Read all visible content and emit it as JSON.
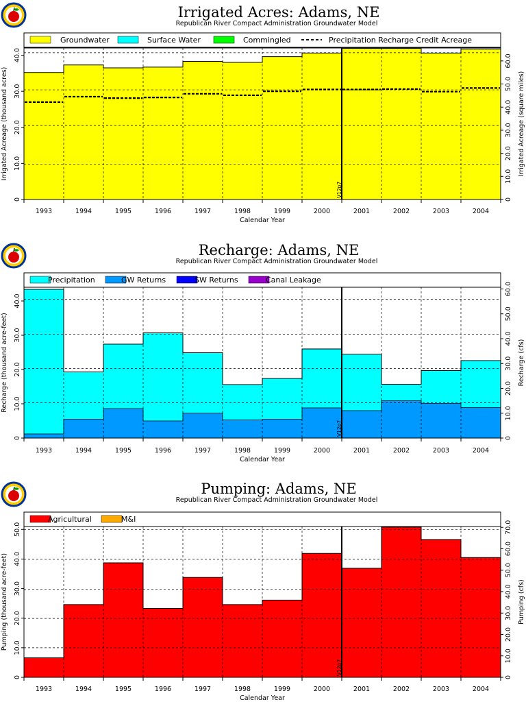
{
  "logo": {
    "icon": "apple-logo-icon"
  },
  "chart_data": [
    {
      "type": "area",
      "title": "Irrigated Acres: Adams, NE",
      "subtitle": "Republican River Compact Administration Groundwater Model",
      "xlabel": "Calendar Year",
      "ylabel": "Irrigated Acreage (thousand acres)",
      "ylabel_right": "Irrigated Acreage (square miles)",
      "categories": [
        "1993",
        "1994",
        "1995",
        "1996",
        "1997",
        "1998",
        "1999",
        "2000",
        "2001",
        "2002",
        "2003",
        "2004"
      ],
      "ylim": [
        0,
        42
      ],
      "yticks": [
        "0",
        "10.0",
        "20.0",
        "30.0",
        "40.0"
      ],
      "yticks_values": [
        0,
        10,
        20,
        30,
        40
      ],
      "ylim_right": [
        0,
        65.6
      ],
      "yticks_right": [
        "0",
        "10.0",
        "20.0",
        "30.0",
        "40.0",
        "50.0",
        "60.0"
      ],
      "yticks_right_values": [
        0,
        10,
        20,
        30,
        40,
        50,
        60
      ],
      "hgrid": [
        9.8,
        20.5,
        30.4,
        40.7
      ],
      "legend": [
        "Groundwater",
        "Surface Water",
        "Commingled",
        "Precipitation Recharge Credit Acreage"
      ],
      "legend_colors": [
        "#ffff00",
        "#00ffff",
        "#00ff00",
        "#000000"
      ],
      "series": [
        {
          "name": "Groundwater",
          "color": "#ffff00",
          "values": [
            35.2,
            37.3,
            36.5,
            36.7,
            38.3,
            38.0,
            39.6,
            40.6,
            41.8,
            41.8,
            40.5,
            41.6
          ]
        },
        {
          "name": "Surface Water",
          "color": "#00ffff",
          "values": [
            0.0,
            0.0,
            0.0,
            0.0,
            0.0,
            0.0,
            0.0,
            0.0,
            0.1,
            0.1,
            0.1,
            0.1
          ]
        },
        {
          "name": "Commingled",
          "color": "#00ff00",
          "values": [
            0,
            0,
            0,
            0,
            0,
            0,
            0,
            0,
            0,
            0,
            0,
            0
          ]
        }
      ],
      "dashed_series": {
        "name": "Precipitation Recharge Credit Acreage",
        "values": [
          27.0,
          28.5,
          28.1,
          28.3,
          29.3,
          28.9,
          30.0,
          30.5,
          30.5,
          30.6,
          29.9,
          30.9
        ]
      },
      "marker_label": "V12p7",
      "marker_after": "2000"
    },
    {
      "type": "area",
      "title": "Recharge: Adams, NE",
      "subtitle": "Republican River Compact Administration Groundwater Model",
      "xlabel": "Calendar Year",
      "ylabel": "Recharge (thousand acre-feet)",
      "ylabel_right": "Recharge (cfs)",
      "categories": [
        "1993",
        "1994",
        "1995",
        "1996",
        "1997",
        "1998",
        "1999",
        "2000",
        "2001",
        "2002",
        "2003",
        "2004"
      ],
      "ylim": [
        0,
        44
      ],
      "yticks": [
        "0",
        "10.0",
        "20.0",
        "30.0",
        "40.0"
      ],
      "yticks_values": [
        0,
        10,
        20,
        30,
        40
      ],
      "ylim_right": [
        0,
        60.7
      ],
      "yticks_right": [
        "0",
        "10.0",
        "20.0",
        "30.0",
        "40.0",
        "50.0",
        "60.0"
      ],
      "yticks_right_values": [
        0,
        10,
        20,
        30,
        40,
        50,
        60
      ],
      "hgrid": [
        10.3,
        20.3,
        30.3,
        40.5
      ],
      "legend": [
        "Precipitation",
        "GW Returns",
        "SW Returns",
        "Canal Leakage"
      ],
      "legend_colors": [
        "#00ffff",
        "#0099ff",
        "#0000ff",
        "#9900cc"
      ],
      "series": [
        {
          "name": "GW Returns",
          "color": "#0099ff",
          "values": [
            1.2,
            5.5,
            8.6,
            5.0,
            7.3,
            5.3,
            5.5,
            8.8,
            8.0,
            10.9,
            10.1,
            8.9
          ]
        },
        {
          "name": "SW Returns",
          "color": "#0000ff",
          "values": [
            0,
            0,
            0,
            0,
            0,
            0,
            0,
            0,
            0,
            0,
            0,
            0
          ]
        },
        {
          "name": "Canal Leakage",
          "color": "#9900cc",
          "values": [
            0,
            0,
            0,
            0,
            0,
            0,
            0,
            0,
            0,
            0,
            0,
            0
          ]
        },
        {
          "name": "Precipitation",
          "color": "#00ffff",
          "values": [
            42.2,
            13.8,
            18.8,
            25.7,
            17.6,
            10.3,
            11.9,
            17.2,
            16.5,
            4.8,
            9.6,
            13.7
          ]
        }
      ],
      "marker_label": "V12p7",
      "marker_after": "2000"
    },
    {
      "type": "area",
      "title": "Pumping: Adams, NE",
      "subtitle": "Republican River Compact Administration Groundwater Model",
      "xlabel": "Calendar Year",
      "ylabel": "Pumping (thousand acre-feet)",
      "ylabel_right": "Pumping (cfs)",
      "categories": [
        "1993",
        "1994",
        "1995",
        "1996",
        "1997",
        "1998",
        "1999",
        "2000",
        "2001",
        "2002",
        "2003",
        "2004"
      ],
      "ylim": [
        0,
        51
      ],
      "yticks": [
        "0",
        "10.0",
        "20.0",
        "30.0",
        "40.0",
        "50.0"
      ],
      "yticks_values": [
        0,
        10,
        20,
        30,
        40,
        50
      ],
      "ylim_right": [
        0,
        70.4
      ],
      "yticks_right": [
        "0",
        "10.0",
        "20.0",
        "30.0",
        "40.0",
        "50.0",
        "60.0",
        "70.0"
      ],
      "yticks_right_values": [
        0,
        10,
        20,
        30,
        40,
        50,
        60,
        70
      ],
      "hgrid": [
        10.0,
        19.9,
        29.8,
        39.9,
        50.0
      ],
      "legend": [
        "Agricultural",
        "M&I"
      ],
      "legend_colors": [
        "#ff0000",
        "#ffaa00"
      ],
      "series": [
        {
          "name": "Agricultural",
          "color": "#ff0000",
          "values": [
            6.6,
            24.6,
            38.7,
            23.3,
            33.8,
            24.6,
            26.1,
            41.9,
            36.9,
            50.8,
            46.6,
            40.5
          ]
        },
        {
          "name": "M&I",
          "color": "#ffaa00",
          "values": [
            0,
            0,
            0,
            0,
            0,
            0,
            0,
            0,
            0,
            0,
            0,
            0
          ]
        }
      ],
      "marker_label": "V12p7",
      "marker_after": "2000"
    }
  ]
}
